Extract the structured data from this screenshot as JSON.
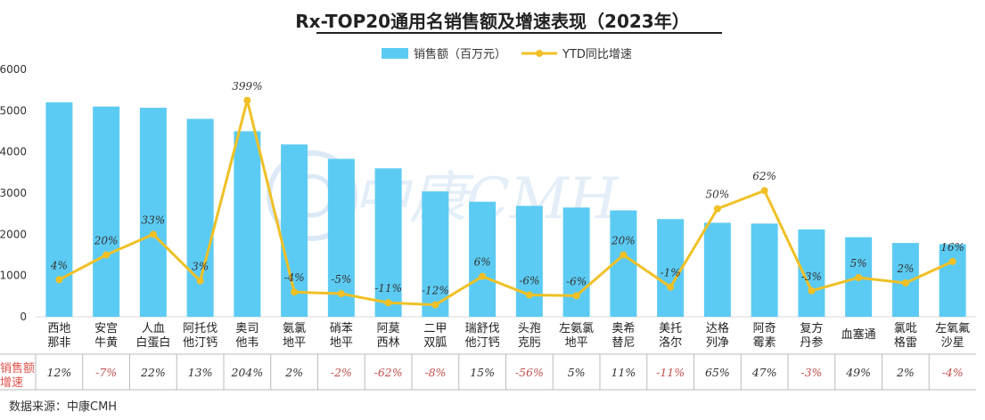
{
  "title": "Rx-TOP20通用名销售额及增速表现（2023年）",
  "source": "数据来源：中康CMH",
  "watermark": "中康CMH",
  "colors": {
    "bar": "#5ccbf3",
    "line": "#f0c026",
    "negative": "#c0504d",
    "positive": "#333333"
  },
  "chart_data": {
    "type": "bar",
    "categories": [
      [
        "西地",
        "那非"
      ],
      [
        "安宫",
        "牛黄"
      ],
      [
        "人血",
        "白蛋白"
      ],
      [
        "阿托伐",
        "他汀钙"
      ],
      [
        "奥司",
        "他韦"
      ],
      [
        "氨氯",
        "地平"
      ],
      [
        "硝苯",
        "地平"
      ],
      [
        "阿莫",
        "西林"
      ],
      [
        "二甲",
        "双胍"
      ],
      [
        "瑞舒伐",
        "他汀钙"
      ],
      [
        "头孢",
        "克肟"
      ],
      [
        "左氨氯",
        "地平"
      ],
      [
        "奥希",
        "替尼"
      ],
      [
        "美托",
        "洛尔"
      ],
      [
        "达格",
        "列净"
      ],
      [
        "阿奇",
        "霉素"
      ],
      [
        "复方",
        "丹参"
      ],
      [
        "血塞通"
      ],
      [
        "氯吡",
        "格雷"
      ],
      [
        "左氧氟",
        "沙星"
      ]
    ],
    "series": [
      {
        "name": "销售额（百万元）",
        "type": "bar",
        "values": [
          5200,
          5100,
          5070,
          4800,
          4500,
          4180,
          3830,
          3600,
          3040,
          2790,
          2690,
          2650,
          2580,
          2370,
          2280,
          2260,
          2120,
          1930,
          1790,
          1760
        ]
      },
      {
        "name": "YTD同比增速",
        "type": "line",
        "values": [
          900,
          1500,
          2000,
          870,
          5250,
          600,
          560,
          340,
          290,
          980,
          530,
          510,
          1500,
          720,
          2620,
          3060,
          630,
          950,
          820,
          1340
        ],
        "labels": [
          "4%",
          "20%",
          "33%",
          "3%",
          "399%",
          "-4%",
          "-5%",
          "-11%",
          "-12%",
          "6%",
          "-6%",
          "-6%",
          "20%",
          "-1%",
          "50%",
          "62%",
          "-3%",
          "5%",
          "2%",
          "16%"
        ]
      }
    ],
    "ylim": [
      0,
      6000
    ],
    "yticks": [
      0,
      1000,
      2000,
      3000,
      4000,
      5000,
      6000
    ],
    "legend_position": "top-center",
    "table": {
      "row_label": [
        "销售额",
        "增速"
      ],
      "values": [
        "12%",
        "-7%",
        "22%",
        "13%",
        "204%",
        "2%",
        "-2%",
        "-62%",
        "-8%",
        "15%",
        "-56%",
        "5%",
        "11%",
        "-11%",
        "65%",
        "47%",
        "-3%",
        "49%",
        "2%",
        "-4%"
      ]
    }
  }
}
